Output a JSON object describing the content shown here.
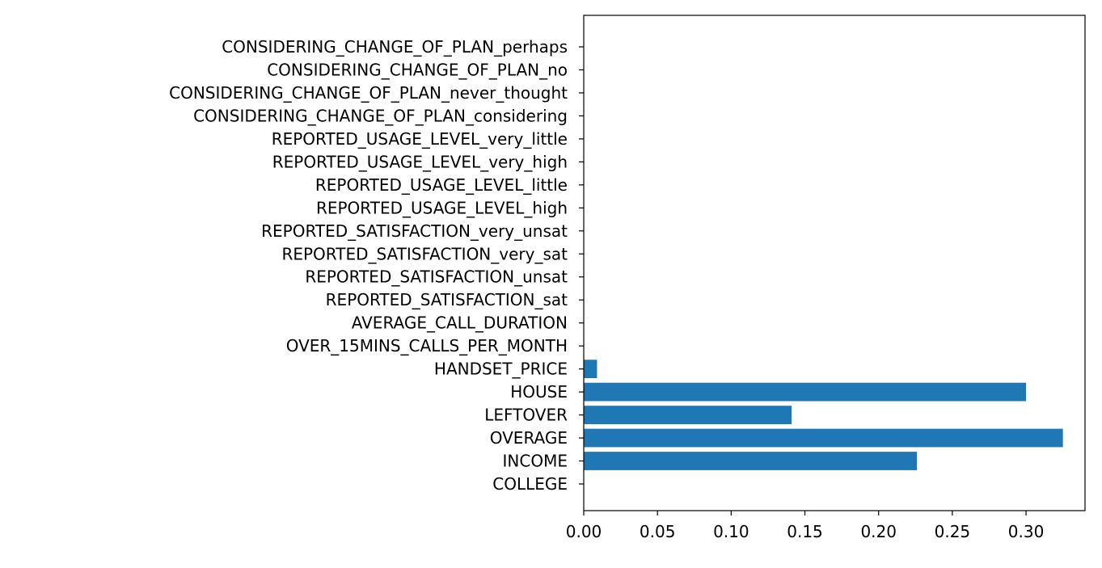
{
  "chart_data": {
    "type": "bar",
    "orientation": "horizontal",
    "categories": [
      "COLLEGE",
      "INCOME",
      "OVERAGE",
      "LEFTOVER",
      "HOUSE",
      "HANDSET_PRICE",
      "OVER_15MINS_CALLS_PER_MONTH",
      "AVERAGE_CALL_DURATION",
      "REPORTED_SATISFACTION_sat",
      "REPORTED_SATISFACTION_unsat",
      "REPORTED_SATISFACTION_very_sat",
      "REPORTED_SATISFACTION_very_unsat",
      "REPORTED_USAGE_LEVEL_high",
      "REPORTED_USAGE_LEVEL_little",
      "REPORTED_USAGE_LEVEL_very_high",
      "REPORTED_USAGE_LEVEL_very_little",
      "CONSIDERING_CHANGE_OF_PLAN_considering",
      "CONSIDERING_CHANGE_OF_PLAN_never_thought",
      "CONSIDERING_CHANGE_OF_PLAN_no",
      "CONSIDERING_CHANGE_OF_PLAN_perhaps"
    ],
    "values": [
      0,
      0.226,
      0.325,
      0.141,
      0.3,
      0.009,
      0,
      0,
      0,
      0,
      0,
      0,
      0,
      0,
      0,
      0,
      0,
      0,
      0,
      0
    ],
    "xlim": [
      0,
      0.34
    ],
    "xticks": [
      "0.00",
      "0.05",
      "0.10",
      "0.15",
      "0.20",
      "0.25",
      "0.30"
    ],
    "grid": false,
    "bar_color": "#1f77b4",
    "title": "",
    "xlabel": "",
    "ylabel": ""
  }
}
